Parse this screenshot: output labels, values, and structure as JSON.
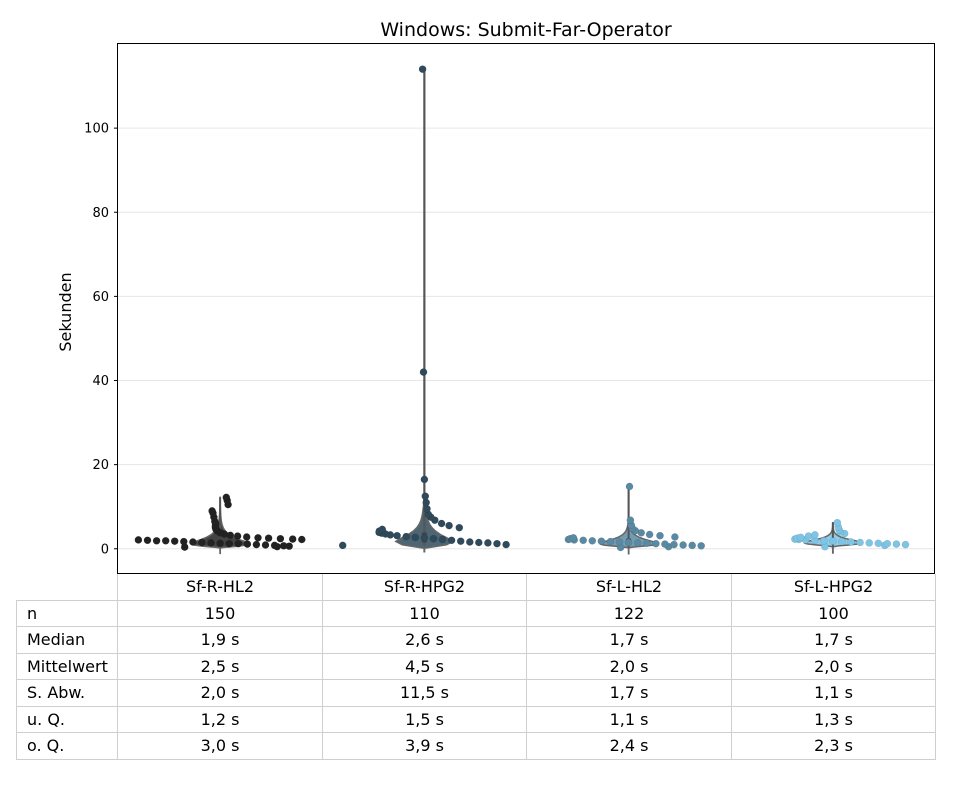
{
  "chart_data": {
    "type": "swarm-violin",
    "title": "Windows: Submit-Far-Operator",
    "ylabel": "Sekunden",
    "ylim": [
      -6,
      120
    ],
    "yticks": [
      0,
      20,
      40,
      60,
      80,
      100
    ],
    "grid": "y",
    "categories": [
      "Sf-R-HL2",
      "Sf-R-HPG2",
      "Sf-L-HL2",
      "Sf-L-HPG2"
    ],
    "colors": [
      "#222222",
      "#2f4a5a",
      "#5a8aa3",
      "#7ec4e4"
    ],
    "series": [
      {
        "category": "Sf-R-HL2",
        "n": 150,
        "median": 1.9,
        "mean": 2.5,
        "sd": 2.0,
        "q1": 1.2,
        "q3": 3.0,
        "min": 0.4,
        "max": 12.2,
        "points": [
          0.4,
          0.5,
          0.6,
          0.7,
          0.8,
          0.9,
          1.0,
          1.1,
          1.2,
          1.2,
          1.3,
          1.4,
          1.5,
          1.6,
          1.7,
          1.8,
          1.9,
          1.9,
          2.0,
          2.1,
          2.2,
          2.3,
          2.4,
          2.5,
          2.6,
          2.8,
          3.0,
          3.2,
          3.5,
          3.8,
          4.2,
          4.6,
          5.0,
          5.5,
          6.0,
          6.5,
          7.5,
          8.5,
          9.0,
          10.5,
          11.5,
          12.2
        ]
      },
      {
        "category": "Sf-R-HPG2",
        "n": 110,
        "median": 2.6,
        "mean": 4.5,
        "sd": 11.5,
        "q1": 1.5,
        "q3": 3.9,
        "min": 0.8,
        "max": 114.0,
        "points": [
          0.8,
          1.0,
          1.2,
          1.4,
          1.5,
          1.6,
          1.8,
          2.0,
          2.2,
          2.4,
          2.6,
          2.7,
          2.9,
          3.1,
          3.3,
          3.5,
          3.7,
          3.9,
          4.2,
          4.6,
          5.0,
          5.5,
          6.0,
          6.8,
          7.5,
          8.2,
          9.5,
          11.0,
          12.5,
          16.5,
          42.0,
          114.0
        ]
      },
      {
        "category": "Sf-L-HL2",
        "n": 122,
        "median": 1.7,
        "mean": 2.0,
        "sd": 1.7,
        "q1": 1.1,
        "q3": 2.4,
        "min": 0.3,
        "max": 14.8,
        "points": [
          0.3,
          0.5,
          0.7,
          0.8,
          0.9,
          1.0,
          1.1,
          1.2,
          1.3,
          1.4,
          1.5,
          1.6,
          1.7,
          1.8,
          1.9,
          2.0,
          2.1,
          2.2,
          2.4,
          2.6,
          2.8,
          3.1,
          3.4,
          3.8,
          4.3,
          4.9,
          5.6,
          6.8,
          14.8
        ]
      },
      {
        "category": "Sf-L-HPG2",
        "n": 100,
        "median": 1.7,
        "mean": 2.0,
        "sd": 1.1,
        "q1": 1.3,
        "q3": 2.3,
        "min": 0.5,
        "max": 6.2,
        "points": [
          0.5,
          0.8,
          1.0,
          1.1,
          1.2,
          1.3,
          1.4,
          1.5,
          1.6,
          1.7,
          1.8,
          1.9,
          2.0,
          2.1,
          2.2,
          2.3,
          2.5,
          2.7,
          3.0,
          3.3,
          3.6,
          4.0,
          4.5,
          5.2,
          6.2
        ]
      }
    ]
  },
  "table": {
    "row_labels": [
      "n",
      "Median",
      "Mittelwert",
      "S. Abw.",
      "u. Q.",
      "o. Q."
    ],
    "columns": [
      "Sf-R-HL2",
      "Sf-R-HPG2",
      "Sf-L-HL2",
      "Sf-L-HPG2"
    ],
    "rows": [
      [
        "150",
        "110",
        "122",
        "100"
      ],
      [
        "1,9 s",
        "2,6 s",
        "1,7 s",
        "1,7 s"
      ],
      [
        "2,5 s",
        "4,5 s",
        "2,0 s",
        "2,0 s"
      ],
      [
        "2,0 s",
        "11,5 s",
        "1,7 s",
        "1,1 s"
      ],
      [
        "1,2 s",
        "1,5 s",
        "1,1 s",
        "1,3 s"
      ],
      [
        "3,0 s",
        "3,9 s",
        "2,4 s",
        "2,3 s"
      ]
    ]
  }
}
